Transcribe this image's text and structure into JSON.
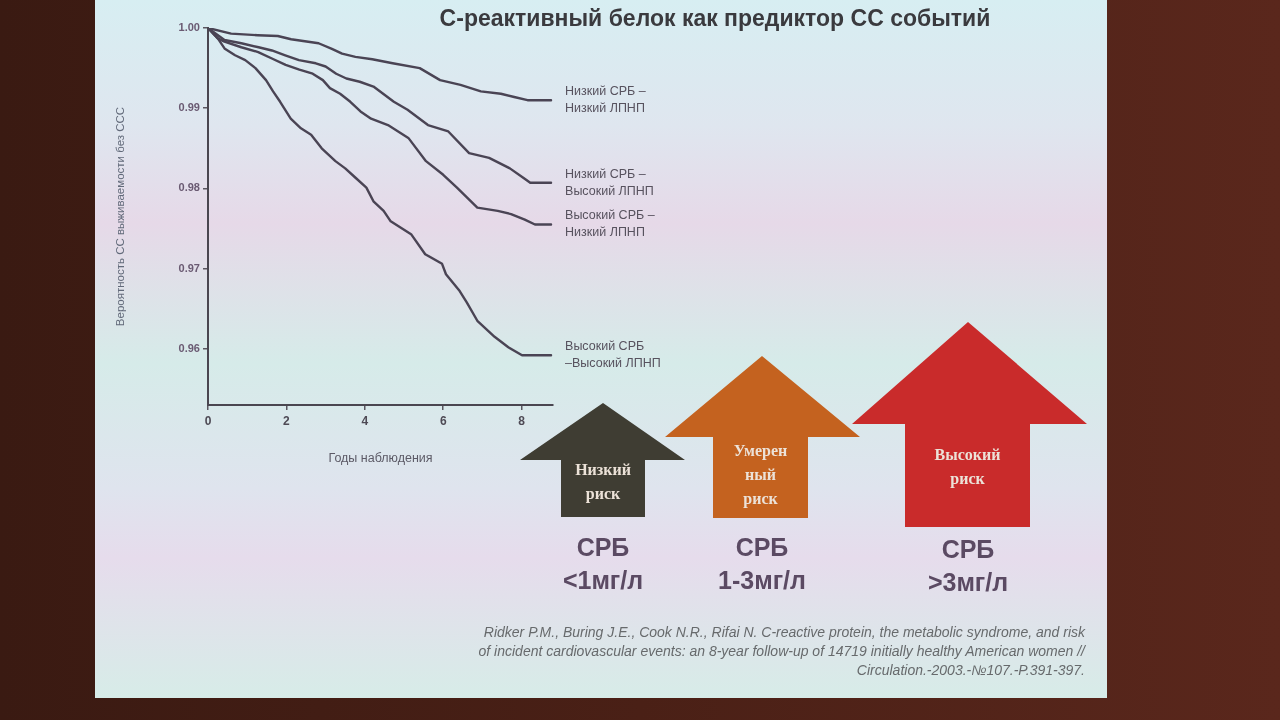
{
  "chart_data": {
    "type": "line",
    "title": "С-реактивный белок как предиктор СС событий",
    "xlabel": "Годы наблюдения",
    "ylabel": "Вероятность СС выживаемости без ССС",
    "xlim": [
      0,
      8.8
    ],
    "xticks": [
      0,
      2,
      4,
      6,
      8
    ],
    "ylim": [
      0.953,
      1
    ],
    "yticks": [
      0.96,
      0.97,
      0.98,
      0.99,
      {
        "value": 1,
        "label": "1.00"
      }
    ],
    "series": [
      {
        "name": "Низкий СРБ –\nНизкий ЛПНП",
        "color": "#4a4454",
        "x": [
          0,
          0.59,
          1.27,
          1.78,
          2.12,
          2.82,
          3.16,
          3.42,
          3.76,
          4.19,
          4.71,
          5.4,
          5.92,
          6.44,
          6.96,
          7.47,
          7.81,
          8.15,
          8.75
        ],
        "values": [
          1,
          0.9993,
          0.9991,
          0.999,
          0.9986,
          0.9981,
          0.9974,
          0.9968,
          0.9964,
          0.9961,
          0.9956,
          0.995,
          0.9935,
          0.9929,
          0.9921,
          0.9918,
          0.9914,
          0.991,
          0.991
        ]
      },
      {
        "name": "Низкий СРБ –\nВысокий ЛПНП",
        "color": "#4a4454",
        "x": [
          0,
          0.42,
          0.85,
          1.29,
          1.63,
          1.97,
          2.32,
          2.75,
          3.0,
          3.27,
          3.53,
          3.87,
          4.22,
          4.74,
          5.09,
          5.61,
          6.13,
          6.66,
          7.17,
          7.7,
          8.05,
          8.22,
          8.75
        ],
        "values": [
          1,
          0.9985,
          0.9981,
          0.9976,
          0.9972,
          0.9966,
          0.996,
          0.9956,
          0.9952,
          0.9943,
          0.9937,
          0.9933,
          0.9927,
          0.9908,
          0.9898,
          0.9879,
          0.9871,
          0.9844,
          0.9838,
          0.9825,
          0.9813,
          0.9807,
          0.9807
        ]
      },
      {
        "name": "Высокий СРБ –\nНизкий ЛПНП",
        "color": "#4a4454",
        "x": [
          0,
          0.25,
          0.42,
          0.85,
          1.28,
          1.63,
          1.98,
          2.33,
          2.67,
          2.93,
          3.11,
          3.37,
          3.63,
          3.89,
          4.16,
          4.59,
          5.11,
          5.56,
          6.0,
          6.35,
          6.87,
          7.39,
          7.73,
          8.08,
          8.34,
          8.75
        ],
        "values": [
          1,
          0.9987,
          0.9983,
          0.9976,
          0.997,
          0.9962,
          0.9954,
          0.9948,
          0.9943,
          0.9935,
          0.9925,
          0.9918,
          0.9908,
          0.9896,
          0.9887,
          0.9879,
          0.9863,
          0.9834,
          0.9817,
          0.9801,
          0.9776,
          0.9772,
          0.9768,
          0.9761,
          0.9755,
          0.9755
        ]
      },
      {
        "name": "Высокий СРБ\n–Высокий ЛПНП",
        "color": "#4a4454",
        "x": [
          0,
          0.25,
          0.43,
          0.69,
          0.95,
          1.21,
          1.48,
          1.66,
          1.84,
          2.11,
          2.37,
          2.63,
          2.9,
          3.25,
          3.5,
          3.77,
          4.04,
          4.22,
          4.48,
          4.66,
          5.18,
          5.54,
          5.97,
          6.07,
          6.42,
          6.6,
          6.87,
          7.31,
          7.66,
          8.01,
          8.75
        ],
        "values": [
          1,
          0.9987,
          0.9974,
          0.9966,
          0.996,
          0.995,
          0.9935,
          0.9921,
          0.9908,
          0.9887,
          0.9875,
          0.9867,
          0.985,
          0.9834,
          0.9825,
          0.9813,
          0.9801,
          0.9784,
          0.9772,
          0.9759,
          0.9743,
          0.9718,
          0.9706,
          0.9693,
          0.9672,
          0.9658,
          0.9635,
          0.9615,
          0.9602,
          0.9592,
          0.9592
        ]
      }
    ],
    "annotations": [
      "Низкий\nриск",
      "СРБ\n<1мг/л",
      "Умерен\nный\nриск",
      "СРБ\n1-3мг/л",
      "Высокий\nриск",
      "СРБ\n>3мг/л",
      "Ridker P.M., Buring J.E., Cook N.R., Rifai N. C-reactive protein, the metabolic syndrome, and risk\nof incident cardiovascular events: an 8-year follow-up of 14719 initially healthy American women //\nCirculation.-2003.-№107.-P.391-397."
    ]
  }
}
